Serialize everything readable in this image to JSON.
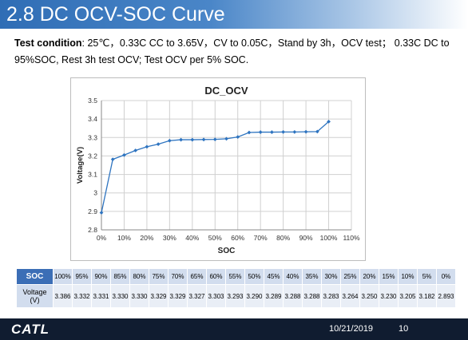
{
  "slide": {
    "title": "2.8 DC OCV-SOC Curve",
    "test_label": "Test condition",
    "test_text": ": 25℃，0.33C CC to 3.65V，CV to 0.05C，Stand by 3h，OCV test； 0.33C DC to 95%SOC, Rest 3h test OCV; Test OCV per 5% SOC."
  },
  "chart_data": {
    "type": "line",
    "title": "DC_OCV",
    "xlabel": "SOC",
    "ylabel": "Voltage(V)",
    "x_ticks": [
      "0%",
      "10%",
      "20%",
      "30%",
      "40%",
      "50%",
      "60%",
      "70%",
      "80%",
      "90%",
      "100%",
      "110%"
    ],
    "y_ticks": [
      "2.8",
      "2.9",
      "3",
      "3.1",
      "3.2",
      "3.3",
      "3.4",
      "3.5"
    ],
    "xlim": [
      0,
      110
    ],
    "ylim": [
      2.8,
      3.5
    ],
    "grid": true,
    "line_color": "#2e74c0",
    "x": [
      0,
      5,
      10,
      15,
      20,
      25,
      30,
      35,
      40,
      45,
      50,
      55,
      60,
      65,
      70,
      75,
      80,
      85,
      90,
      95,
      100
    ],
    "y": [
      2.893,
      3.182,
      3.205,
      3.23,
      3.25,
      3.264,
      3.283,
      3.288,
      3.288,
      3.289,
      3.29,
      3.293,
      3.303,
      3.327,
      3.329,
      3.329,
      3.33,
      3.33,
      3.331,
      3.332,
      3.386
    ]
  },
  "table": {
    "soc_header": "SOC",
    "voltage_header": "Voltage\n(V)",
    "soc": [
      "100%",
      "95%",
      "90%",
      "85%",
      "80%",
      "75%",
      "70%",
      "65%",
      "60%",
      "55%",
      "50%",
      "45%",
      "40%",
      "35%",
      "30%",
      "25%",
      "20%",
      "15%",
      "10%",
      "5%",
      "0%"
    ],
    "voltage": [
      "3.386",
      "3.332",
      "3.331",
      "3.330",
      "3.330",
      "3.329",
      "3.329",
      "3.327",
      "3.303",
      "3.293",
      "3.290",
      "3.289",
      "3.288",
      "3.288",
      "3.283",
      "3.264",
      "3.250",
      "3.230",
      "3.205",
      "3.182",
      "2.893"
    ],
    "header_color": "#3b6eb6"
  },
  "footer": {
    "logo": "CATL",
    "date": "10/21/2019",
    "page": "10"
  }
}
